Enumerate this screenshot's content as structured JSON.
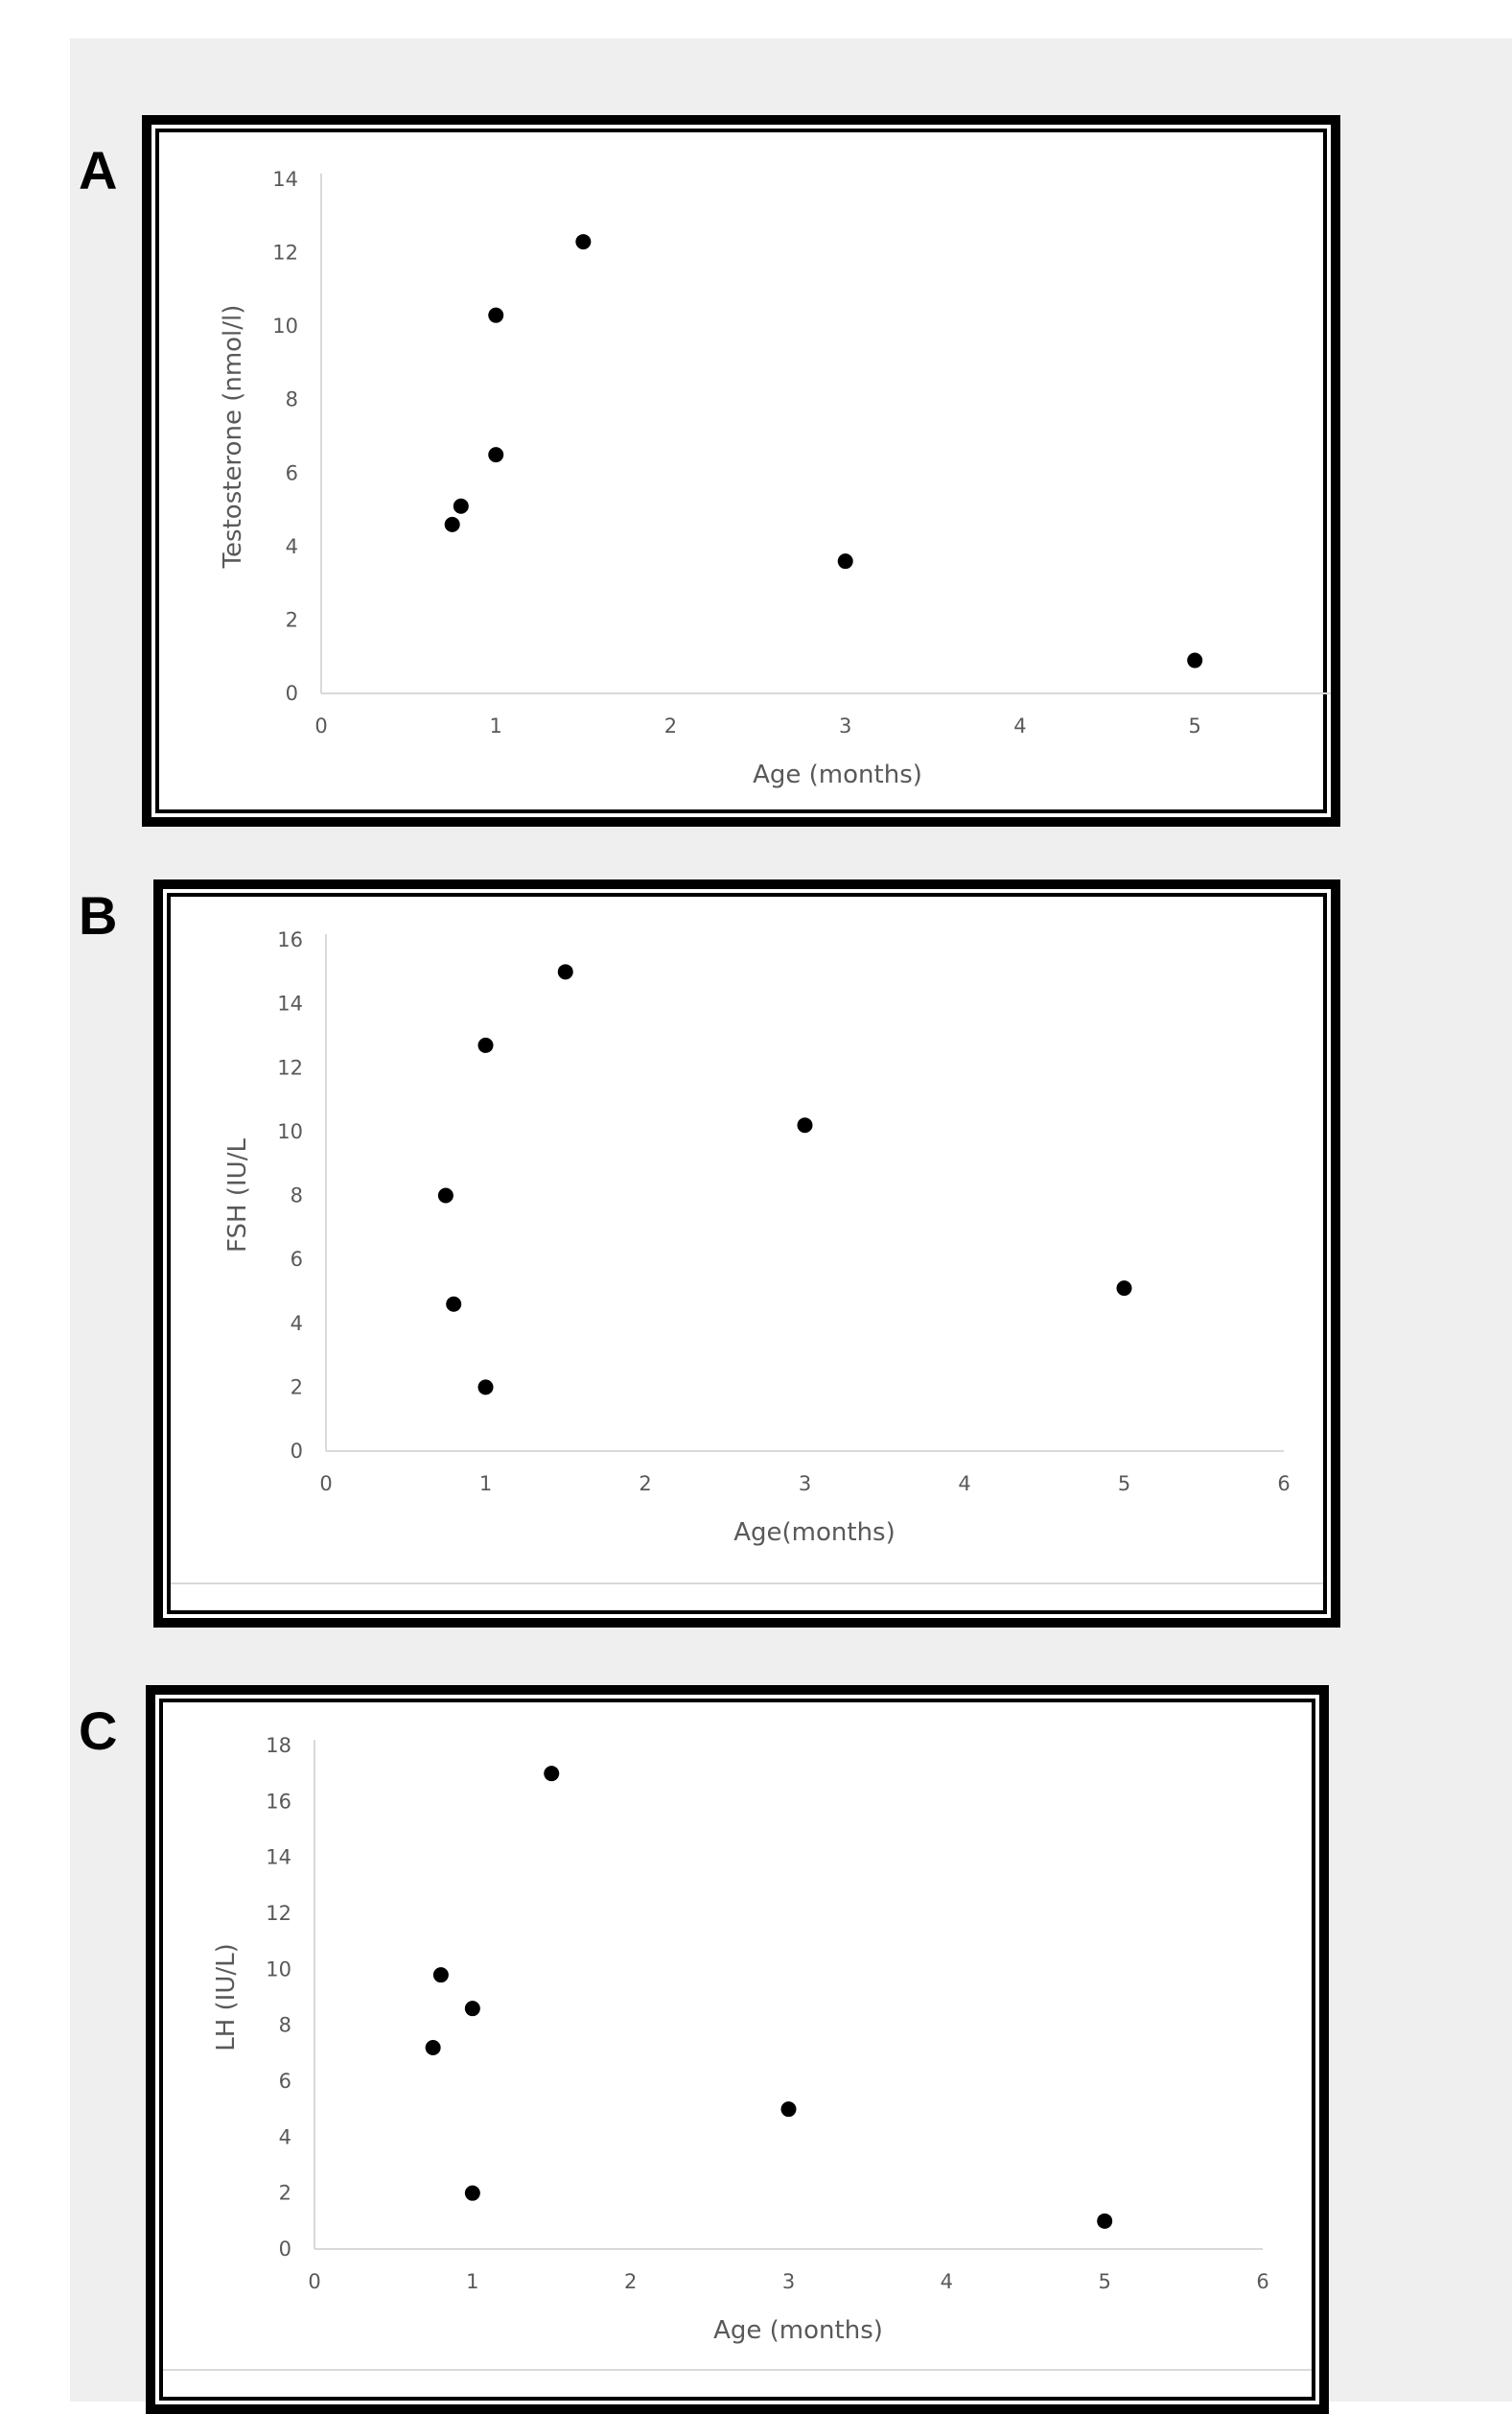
{
  "figure": {
    "background": "#efefef",
    "dot_color": "#000000",
    "panels": [
      {
        "letter": "A"
      },
      {
        "letter": "B"
      },
      {
        "letter": "C"
      }
    ]
  },
  "chart_data": [
    {
      "type": "scatter",
      "xlabel": "Age (months)",
      "ylabel": "Testosterone (nmol/l)",
      "xlim": [
        0,
        5.8
      ],
      "ylim": [
        0,
        14
      ],
      "xticks": [
        "0",
        "1",
        "2",
        "3",
        "4",
        "5"
      ],
      "yticks": [
        "0",
        "2",
        "4",
        "6",
        "8",
        "10",
        "12",
        "14"
      ],
      "grid": false,
      "x": [
        0.75,
        0.8,
        1,
        1,
        1.5,
        3,
        5
      ],
      "y": [
        4.6,
        5.1,
        6.5,
        10.3,
        12.3,
        3.6,
        0.9
      ]
    },
    {
      "type": "scatter",
      "xlabel": "Age(months)",
      "ylabel": "FSH (IU/L",
      "xlim": [
        0,
        6
      ],
      "ylim": [
        0,
        16
      ],
      "xticks": [
        "0",
        "1",
        "2",
        "3",
        "4",
        "5",
        "6"
      ],
      "yticks": [
        "0",
        "2",
        "4",
        "6",
        "8",
        "10",
        "12",
        "14",
        "16"
      ],
      "grid": false,
      "x": [
        0.75,
        0.8,
        1,
        1,
        1.5,
        3,
        5
      ],
      "y": [
        8,
        4.6,
        2,
        12.7,
        15,
        10.2,
        5.1
      ]
    },
    {
      "type": "scatter",
      "xlabel": "Age (months)",
      "ylabel": "LH (IU/L)",
      "xlim": [
        0,
        6
      ],
      "ylim": [
        0,
        18
      ],
      "xticks": [
        "0",
        "1",
        "2",
        "3",
        "4",
        "5",
        "6"
      ],
      "yticks": [
        "0",
        "2",
        "4",
        "6",
        "8",
        "10",
        "12",
        "14",
        "16",
        "18"
      ],
      "grid": false,
      "x": [
        0.75,
        0.8,
        1,
        1,
        1.5,
        3,
        5
      ],
      "y": [
        7.2,
        9.8,
        8.6,
        2,
        17,
        5,
        1
      ]
    }
  ]
}
